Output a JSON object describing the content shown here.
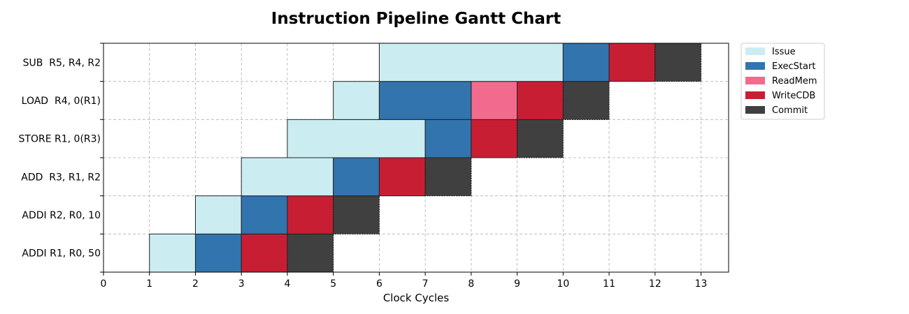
{
  "chart_data": {
    "type": "gantt",
    "title": "Instruction Pipeline Gantt Chart",
    "xlabel": "Clock Cycles",
    "ylabel": "",
    "xlim": [
      0,
      13.6
    ],
    "xticks": [
      0,
      1,
      2,
      3,
      4,
      5,
      6,
      7,
      8,
      9,
      10,
      11,
      12,
      13
    ],
    "grid": true,
    "legend_position": "outside-top-right",
    "stages": [
      {
        "name": "Issue",
        "color": "#cbedf2"
      },
      {
        "name": "ExecStart",
        "color": "#3274ad"
      },
      {
        "name": "ReadMem",
        "color": "#f26b8f"
      },
      {
        "name": "WriteCDB",
        "color": "#c81e33"
      },
      {
        "name": "Commit",
        "color": "#404040"
      }
    ],
    "instructions": [
      {
        "label": "ADDI R1, R0, 50",
        "segments": [
          {
            "stage": "Issue",
            "start": 1,
            "end": 2
          },
          {
            "stage": "ExecStart",
            "start": 2,
            "end": 3
          },
          {
            "stage": "WriteCDB",
            "start": 3,
            "end": 4
          },
          {
            "stage": "Commit",
            "start": 4,
            "end": 5
          }
        ]
      },
      {
        "label": "ADDI R2, R0, 10",
        "segments": [
          {
            "stage": "Issue",
            "start": 2,
            "end": 3
          },
          {
            "stage": "ExecStart",
            "start": 3,
            "end": 4
          },
          {
            "stage": "WriteCDB",
            "start": 4,
            "end": 5
          },
          {
            "stage": "Commit",
            "start": 5,
            "end": 6
          }
        ]
      },
      {
        "label": "ADD  R3, R1, R2",
        "segments": [
          {
            "stage": "Issue",
            "start": 3,
            "end": 5
          },
          {
            "stage": "ExecStart",
            "start": 5,
            "end": 6
          },
          {
            "stage": "WriteCDB",
            "start": 6,
            "end": 7
          },
          {
            "stage": "Commit",
            "start": 7,
            "end": 8
          }
        ]
      },
      {
        "label": "STORE R1, 0(R3)",
        "segments": [
          {
            "stage": "Issue",
            "start": 4,
            "end": 7
          },
          {
            "stage": "ExecStart",
            "start": 7,
            "end": 8
          },
          {
            "stage": "WriteCDB",
            "start": 8,
            "end": 9
          },
          {
            "stage": "Commit",
            "start": 9,
            "end": 10
          }
        ]
      },
      {
        "label": "LOAD  R4, 0(R1)",
        "segments": [
          {
            "stage": "Issue",
            "start": 5,
            "end": 6
          },
          {
            "stage": "ExecStart",
            "start": 6,
            "end": 8
          },
          {
            "stage": "ReadMem",
            "start": 8,
            "end": 9
          },
          {
            "stage": "WriteCDB",
            "start": 9,
            "end": 10
          },
          {
            "stage": "Commit",
            "start": 10,
            "end": 11
          }
        ]
      },
      {
        "label": "SUB  R5, R4, R2",
        "segments": [
          {
            "stage": "Issue",
            "start": 6,
            "end": 10
          },
          {
            "stage": "ExecStart",
            "start": 10,
            "end": 11
          },
          {
            "stage": "WriteCDB",
            "start": 11,
            "end": 12
          },
          {
            "stage": "Commit",
            "start": 12,
            "end": 13
          }
        ]
      }
    ]
  }
}
